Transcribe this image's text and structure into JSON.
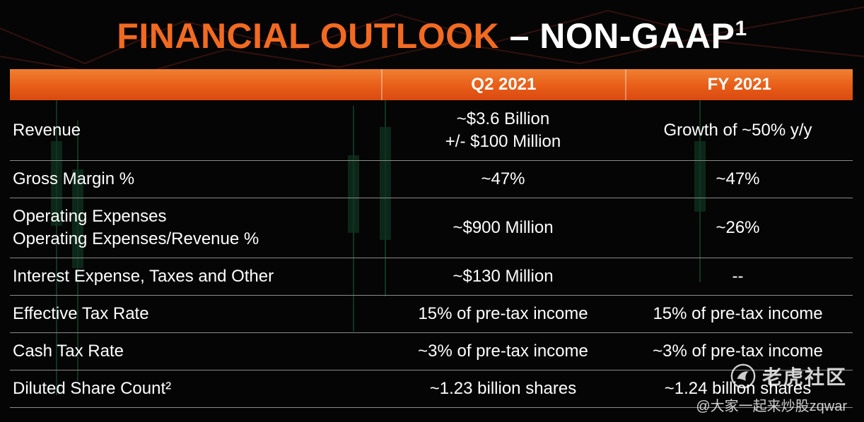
{
  "title": {
    "orange_part": "FINANCIAL OUTLOOK",
    "white_part": "– NON-GAAP",
    "footnote_mark": "1"
  },
  "table": {
    "headers": [
      "",
      "Q2 2021",
      "FY 2021"
    ],
    "rows": [
      {
        "label_lines": [
          "Revenue"
        ],
        "q2_lines": [
          "~$3.6 Billion",
          "+/- $100 Million"
        ],
        "fy_lines": [
          "Growth of ~50% y/y"
        ]
      },
      {
        "label_lines": [
          "Gross Margin %"
        ],
        "q2_lines": [
          "~47%"
        ],
        "fy_lines": [
          "~47%"
        ]
      },
      {
        "label_lines": [
          "Operating Expenses",
          "Operating Expenses/Revenue %"
        ],
        "q2_lines": [
          "~$900 Million"
        ],
        "fy_lines": [
          "~26%"
        ]
      },
      {
        "label_lines": [
          "Interest Expense, Taxes and Other"
        ],
        "q2_lines": [
          "~$130 Million"
        ],
        "fy_lines": [
          "--"
        ]
      },
      {
        "label_lines": [
          "Effective Tax Rate"
        ],
        "q2_lines": [
          "15% of pre-tax income"
        ],
        "fy_lines": [
          "15% of pre-tax income"
        ]
      },
      {
        "label_lines": [
          "Cash Tax Rate"
        ],
        "q2_lines": [
          "~3% of pre-tax income"
        ],
        "fy_lines": [
          "~3% of pre-tax income"
        ]
      },
      {
        "label_lines": [
          "Diluted Share Count²"
        ],
        "q2_lines": [
          "~1.23 billion shares"
        ],
        "fy_lines": [
          "~1.24 billion shares"
        ]
      }
    ]
  },
  "watermark": {
    "brand": "老虎社区",
    "sub": "@大家一起来炒股zqwar",
    "icon": "tiger-logo-icon"
  },
  "colors": {
    "accent_orange": "#f26a21",
    "background": "#050505",
    "header_bar": "#e85d18"
  }
}
